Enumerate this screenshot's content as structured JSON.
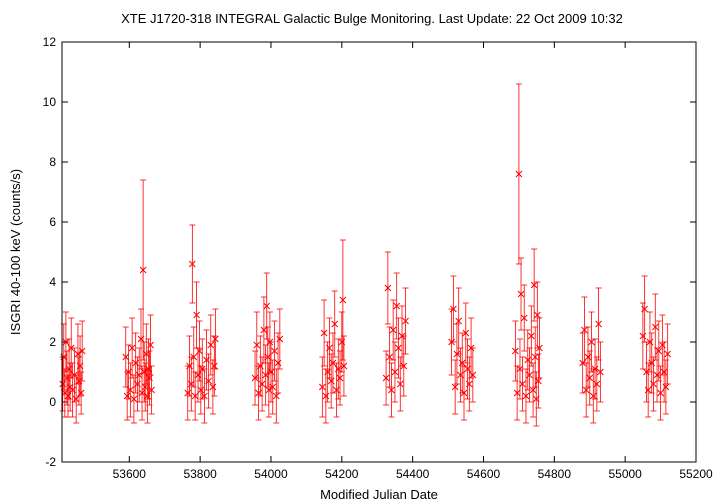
{
  "chart_data": {
    "type": "scatter",
    "title": "XTE J1720-318   INTEGRAL Galactic Bulge Monitoring.  Last Update: 22 Oct 2009 10:32",
    "xlabel": "Modified Julian Date",
    "ylabel": "ISGRI 40-100 keV (counts/s)",
    "xlim": [
      53410,
      55200
    ],
    "ylim": [
      -2,
      12
    ],
    "xticks": [
      53600,
      53800,
      54000,
      54200,
      54400,
      54600,
      54800,
      55000,
      55200
    ],
    "yticks": [
      -2,
      0,
      2,
      4,
      6,
      8,
      10,
      12
    ],
    "grid": false,
    "legend": "none",
    "marker": "x",
    "color": "#ff0000",
    "series": [
      {
        "x": [
          53412,
          53415,
          53418,
          53421,
          53424,
          53427,
          53430,
          53433,
          53436,
          53440,
          53445,
          53450,
          53455,
          53458,
          53461,
          53464,
          53467,
          53590,
          53594,
          53598,
          53603,
          53608,
          53613,
          53618,
          53623,
          53628,
          53633,
          53636,
          53639,
          53642,
          53645,
          53648,
          53651,
          53654,
          53657,
          53660,
          53663,
          53765,
          53770,
          53775,
          53778,
          53782,
          53786,
          53790,
          53794,
          53798,
          53802,
          53806,
          53812,
          53818,
          53824,
          53830,
          53836,
          53840,
          53843,
          53955,
          53960,
          53965,
          53970,
          53975,
          53980,
          53985,
          53988,
          53991,
          53994,
          53997,
          54000,
          54005,
          54010,
          54015,
          54020,
          54025,
          54145,
          54150,
          54155,
          54160,
          54165,
          54170,
          54175,
          54180,
          54185,
          54190,
          54195,
          54200,
          54203,
          54206,
          54325,
          54330,
          54335,
          54340,
          54345,
          54350,
          54355,
          54360,
          54365,
          54370,
          54375,
          54380,
          54510,
          54515,
          54520,
          54525,
          54530,
          54535,
          54540,
          54545,
          54550,
          54555,
          54560,
          54565,
          54570,
          54690,
          54695,
          54700,
          54703,
          54706,
          54710,
          54715,
          54720,
          54725,
          54730,
          54735,
          54740,
          54743,
          54746,
          54749,
          54752,
          54755,
          54758,
          54880,
          54885,
          54890,
          54895,
          54900,
          54905,
          54910,
          54915,
          54920,
          54925,
          54930,
          55050,
          55055,
          55060,
          55065,
          55070,
          55075,
          55080,
          55085,
          55090,
          55095,
          55100,
          55105,
          55110,
          55115,
          55120
        ],
        "y": [
          0.6,
          1.5,
          0.3,
          2.0,
          0.8,
          0.2,
          1.1,
          0.5,
          1.8,
          0.4,
          0.9,
          0.1,
          1.6,
          0.7,
          1.2,
          0.3,
          1.7,
          1.5,
          0.2,
          1.0,
          0.4,
          1.8,
          0.1,
          1.3,
          0.6,
          0.9,
          2.1,
          0.3,
          4.4,
          1.0,
          0.5,
          1.6,
          0.2,
          1.1,
          0.8,
          1.9,
          0.4,
          0.3,
          1.2,
          0.6,
          4.6,
          1.5,
          0.2,
          2.9,
          0.9,
          1.7,
          0.4,
          1.1,
          0.2,
          1.4,
          0.7,
          1.9,
          0.5,
          1.2,
          2.1,
          0.8,
          1.9,
          0.3,
          1.2,
          0.6,
          2.4,
          0.9,
          3.2,
          1.5,
          0.4,
          2.0,
          1.0,
          0.5,
          1.7,
          0.2,
          1.3,
          2.1,
          0.5,
          2.3,
          0.2,
          1.0,
          1.8,
          0.7,
          1.3,
          2.6,
          0.4,
          1.1,
          0.8,
          2.0,
          3.4,
          1.2,
          0.8,
          3.8,
          1.5,
          0.4,
          2.4,
          1.0,
          3.2,
          1.8,
          0.6,
          2.2,
          1.2,
          2.7,
          2.0,
          3.1,
          0.5,
          1.6,
          2.7,
          0.9,
          1.3,
          0.3,
          2.3,
          1.1,
          0.6,
          1.8,
          0.9,
          1.7,
          0.3,
          7.6,
          1.1,
          3.6,
          0.6,
          2.8,
          0.2,
          1.4,
          0.9,
          2.2,
          0.4,
          3.9,
          1.5,
          0.1,
          2.9,
          0.7,
          1.8,
          1.3,
          2.4,
          0.4,
          1.5,
          0.8,
          2.0,
          0.2,
          1.1,
          0.6,
          2.6,
          1.0,
          2.2,
          3.1,
          1.0,
          0.4,
          2.0,
          1.3,
          0.6,
          2.5,
          0.9,
          1.7,
          0.3,
          1.9,
          1.0,
          0.5,
          1.6
        ],
        "yerr": [
          0.9,
          1.1,
          0.8,
          1.0,
          0.9,
          0.7,
          1.0,
          0.8,
          1.0,
          0.9,
          0.9,
          0.8,
          1.0,
          0.8,
          1.0,
          0.7,
          1.0,
          1.0,
          0.8,
          0.9,
          0.9,
          1.0,
          0.8,
          1.0,
          0.9,
          0.9,
          1.0,
          0.9,
          3.0,
          1.0,
          0.8,
          1.0,
          0.9,
          1.0,
          0.9,
          1.0,
          0.8,
          0.9,
          1.0,
          0.9,
          1.3,
          1.0,
          0.8,
          1.1,
          0.9,
          1.0,
          0.8,
          1.0,
          0.9,
          1.0,
          0.9,
          1.0,
          0.9,
          1.0,
          1.0,
          0.9,
          1.1,
          0.9,
          1.0,
          0.9,
          1.1,
          1.0,
          1.1,
          1.0,
          0.9,
          1.0,
          1.0,
          0.9,
          1.0,
          0.9,
          1.0,
          1.0,
          1.0,
          1.1,
          0.9,
          1.0,
          1.0,
          0.9,
          1.0,
          1.1,
          0.9,
          1.0,
          0.9,
          1.0,
          2.0,
          1.0,
          0.9,
          1.2,
          1.0,
          0.9,
          1.0,
          1.0,
          1.1,
          1.0,
          0.9,
          1.0,
          1.0,
          1.1,
          1.1,
          1.1,
          0.9,
          1.0,
          1.1,
          0.9,
          1.0,
          0.9,
          1.0,
          1.0,
          0.9,
          1.0,
          0.9,
          1.0,
          0.9,
          3.0,
          1.0,
          1.2,
          0.9,
          1.1,
          0.9,
          1.0,
          0.9,
          1.0,
          0.9,
          1.2,
          1.0,
          0.9,
          1.1,
          0.9,
          1.0,
          1.0,
          1.1,
          0.9,
          1.0,
          0.9,
          1.0,
          0.9,
          1.0,
          0.9,
          1.2,
          1.0,
          1.1,
          1.1,
          1.0,
          0.9,
          1.0,
          1.0,
          0.9,
          1.1,
          0.9,
          1.0,
          0.9,
          1.0,
          1.0,
          0.9,
          1.0
        ]
      }
    ]
  }
}
